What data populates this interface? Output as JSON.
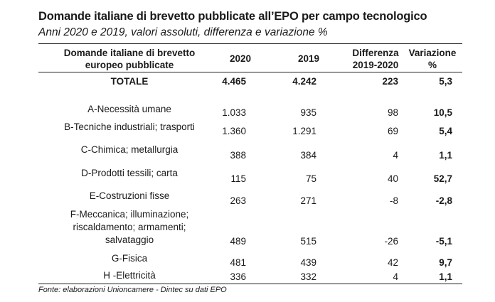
{
  "title": "Domande italiane di brevetto pubblicate all’EPO per campo tecnologico",
  "subtitle": "Anni 2020 e 2019, valori assoluti, differenza e variazione %",
  "headers": {
    "label_line1": "Domande italiane di brevetto",
    "label_line2": "europeo pubblicate",
    "y2020": "2020",
    "y2019": "2019",
    "diff_line1": "Differenza",
    "diff_line2": "2019-2020",
    "var_line1": "Variazione",
    "var_line2": "%"
  },
  "total": {
    "label": "TOTALE",
    "v2020": "4.465",
    "v2019": "4.242",
    "diff": "223",
    "var": "5,3"
  },
  "rows": [
    {
      "label": "A-Necessità umane",
      "v2020": "1.033",
      "v2019": "935",
      "diff": "98",
      "var": "10,5"
    },
    {
      "label": "B-Tecniche industriali; trasporti",
      "v2020": "1.360",
      "v2019": "1.291",
      "diff": "69",
      "var": "5,4"
    },
    {
      "label": "C-Chimica; metallurgia",
      "v2020": "388",
      "v2019": "384",
      "diff": "4",
      "var": "1,1"
    },
    {
      "label": "D-Prodotti tessili; carta",
      "v2020": "115",
      "v2019": "75",
      "diff": "40",
      "var": "52,7"
    },
    {
      "label": "E-Costruzioni fisse",
      "v2020": "263",
      "v2019": "271",
      "diff": "-8",
      "var": "-2,8"
    },
    {
      "label_line1": "F-Meccanica; illuminazione;",
      "label_line2": "riscaldamento; armamenti;",
      "label_line3": "salvataggio",
      "v2020": "489",
      "v2019": "515",
      "diff": "-26",
      "var": "-5,1"
    },
    {
      "label": "G-Fisica",
      "v2020": "481",
      "v2019": "439",
      "diff": "42",
      "var": "9,7"
    },
    {
      "label": "H -Elettricità",
      "v2020": "336",
      "v2019": "332",
      "diff": "4",
      "var": "1,1"
    }
  ],
  "source": "Fonte: elaborazioni Unioncamere - Dintec su dati EPO"
}
